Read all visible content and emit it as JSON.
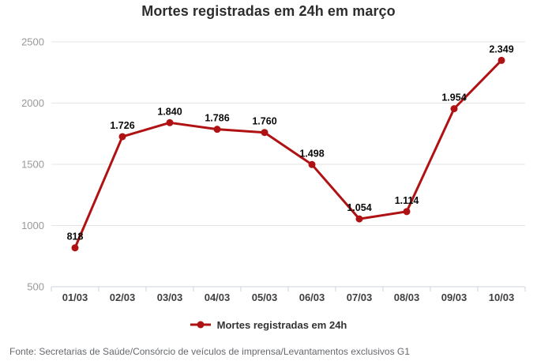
{
  "title": "Mortes registradas em 24h em março",
  "legend": {
    "label": "Mortes registradas em 24h"
  },
  "source": "Fonte: Secretarias de Saúde/Consórcio de veículos de imprensa/Levantamentos exclusivos G1",
  "colors": {
    "line": "#b01112",
    "point": "#b01112",
    "grid": "#e4e4e4",
    "axis": "#ccd3de",
    "y_tick_label": "#999999",
    "x_tick_label": "#3f3f3f",
    "data_label": "#0a0a0a"
  },
  "chart_data": {
    "type": "line",
    "title": "Mortes registradas em 24h em março",
    "series_name": "Mortes registradas em 24h",
    "categories": [
      "01/03",
      "02/03",
      "03/03",
      "04/03",
      "05/03",
      "06/03",
      "07/03",
      "08/03",
      "09/03",
      "10/03"
    ],
    "values": [
      818,
      1726,
      1840,
      1786,
      1760,
      1498,
      1054,
      1114,
      1954,
      2349
    ],
    "point_labels": [
      "818",
      "1.726",
      "1.840",
      "1.786",
      "1.760",
      "1.498",
      "1.054",
      "1.114",
      "1.954",
      "2.349"
    ],
    "xlabel": "",
    "ylabel": "",
    "ylim": [
      500,
      2500
    ],
    "yticks": [
      500,
      1000,
      1500,
      2000,
      2500
    ],
    "ytick_labels": [
      "500",
      "1000",
      "1500",
      "2000",
      "2500"
    ],
    "grid": true,
    "legend_position": "bottom",
    "source": "Fonte: Secretarias de Saúde/Consórcio de veículos de imprensa/Levantamentos exclusivos G1"
  }
}
